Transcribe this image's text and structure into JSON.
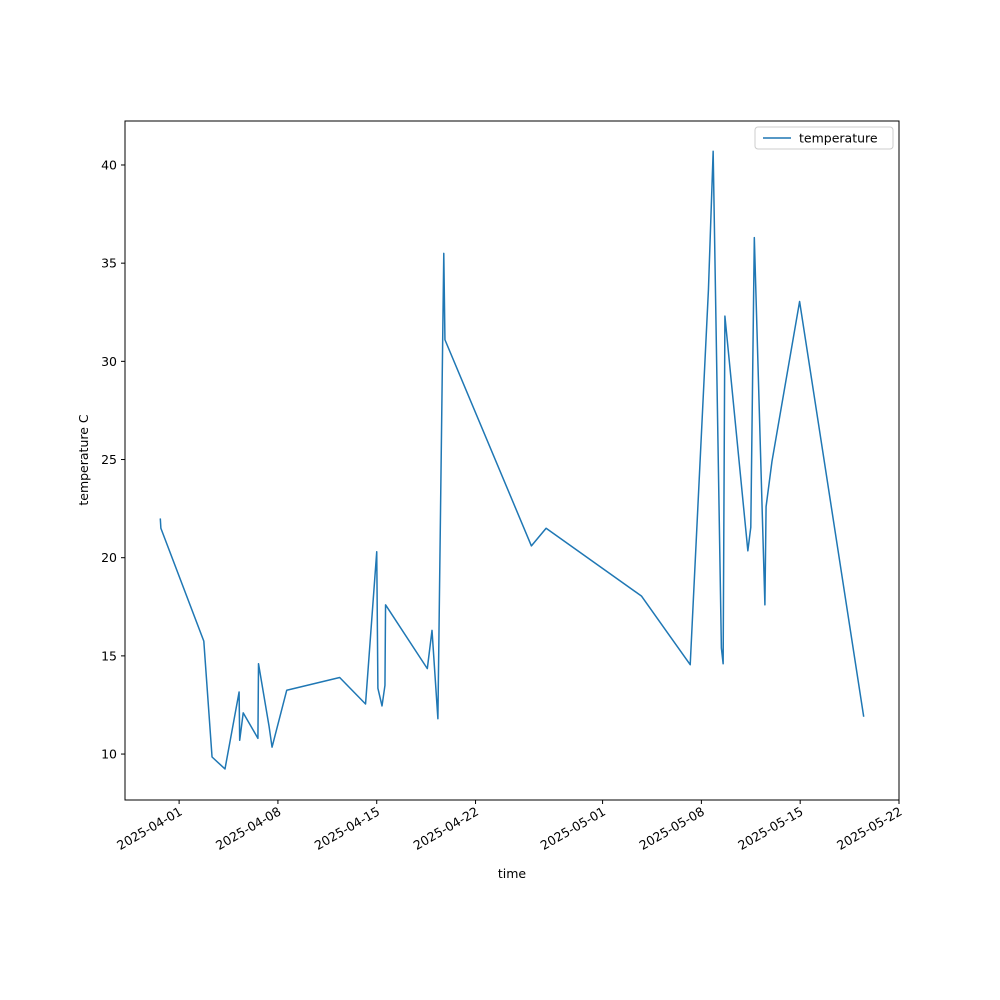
{
  "chart_data": {
    "type": "line",
    "xlabel": "time",
    "ylabel": "temperature C",
    "x": [
      "2025-03-30T16:00",
      "2025-03-30T17:00",
      "2025-04-02T18:00",
      "2025-04-03T08:00",
      "2025-04-04T06:00",
      "2025-04-05T06:00",
      "2025-04-05T07:00",
      "2025-04-05T13:00",
      "2025-04-06T14:00",
      "2025-04-06T15:00",
      "2025-04-07T09:00",
      "2025-04-07T14:00",
      "2025-04-08T15:00",
      "2025-04-12T09:00",
      "2025-04-14T05:00",
      "2025-04-15T00:00",
      "2025-04-15T02:00",
      "2025-04-15T09:00",
      "2025-04-15T14:00",
      "2025-04-15T15:00",
      "2025-04-18T14:00",
      "2025-04-18T22:00",
      "2025-04-19T08:00",
      "2025-04-19T18:00",
      "2025-04-19T20:00",
      "2025-04-25T23:00",
      "2025-04-27T00:00",
      "2025-05-03T18:00",
      "2025-05-07T05:00",
      "2025-05-07T10:00",
      "2025-05-08T12:00",
      "2025-05-08T20:00",
      "2025-05-09T10:00",
      "2025-05-09T13:00",
      "2025-05-09T16:00",
      "2025-05-11T07:00",
      "2025-05-11T12:00",
      "2025-05-11T18:00",
      "2025-05-12T12:00",
      "2025-05-12T14:00",
      "2025-05-13T00:00",
      "2025-05-14T23:00",
      "2025-05-19T12:00"
    ],
    "series": [
      {
        "name": "temperature",
        "color": "#1f77b4",
        "values": [
          22.0,
          21.5,
          15.75,
          9.85,
          9.24,
          13.16,
          10.7,
          12.1,
          10.8,
          14.6,
          11.4,
          10.35,
          13.25,
          13.9,
          12.55,
          20.3,
          13.35,
          12.45,
          13.5,
          17.6,
          14.35,
          16.3,
          11.8,
          35.5,
          31.1,
          20.6,
          21.5,
          18.05,
          14.55,
          17.65,
          33.65,
          40.7,
          15.4,
          14.6,
          32.3,
          20.35,
          21.55,
          36.3,
          17.6,
          22.6,
          24.9,
          33.05,
          11.9
        ]
      }
    ],
    "xlim": [
      "2025-03-28T04:00",
      "2025-05-22T00:00"
    ],
    "xticks": [
      "2025-04-01",
      "2025-04-08",
      "2025-04-15",
      "2025-04-22",
      "2025-05-01",
      "2025-05-08",
      "2025-05-15",
      "2025-05-22"
    ],
    "ylim": [
      7.66,
      42.24
    ],
    "yticks": [
      10,
      15,
      20,
      25,
      30,
      35,
      40
    ],
    "grid": false,
    "legend": "upper right"
  }
}
